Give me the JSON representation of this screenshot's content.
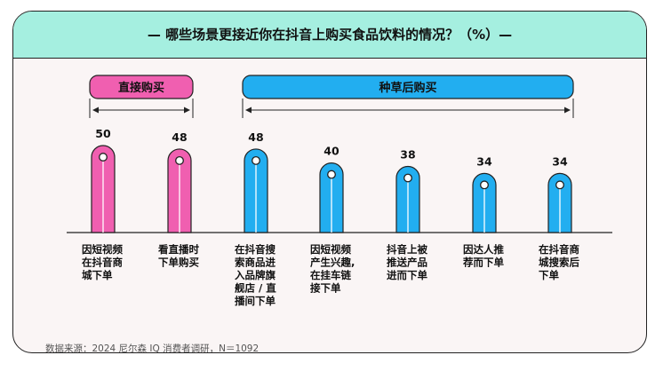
{
  "title": "— 哪些场景更接近你在抖音上购买食品饮料的情况？（%）—",
  "source": "数据来源：2024 尼尔森 IQ 消费者调研，N＝1092",
  "colors": {
    "pink": "#f05fb0",
    "blue": "#22aef0",
    "header_bg": "#a5efe0",
    "card_bg": "#faf5f5",
    "outline": "#222222"
  },
  "chart_data": {
    "type": "bar",
    "title": "哪些场景更接近你在抖音上购买食品饮料的情况？（%）",
    "categories": [
      [
        "因短视频",
        "在抖音商",
        "城下单"
      ],
      [
        "看直播时",
        "下单购买"
      ],
      [
        "在抖音搜",
        "索商品进",
        "入品牌旗",
        "舰店 / 直",
        "播间下单"
      ],
      [
        "因短视频",
        "产生兴趣,",
        "在挂车链",
        "接下单"
      ],
      [
        "抖音上被",
        "推送产品",
        "进而下单"
      ],
      [
        "因达人推",
        "荐而下单"
      ],
      [
        "在抖音商",
        "城搜索后",
        "下单"
      ]
    ],
    "values": [
      50,
      48,
      48,
      40,
      38,
      34,
      34
    ],
    "groups": [
      {
        "name": "直接购买",
        "from": 0,
        "to": 1,
        "color": "#f05fb0"
      },
      {
        "name": "种草后购买",
        "from": 2,
        "to": 6,
        "color": "#22aef0"
      }
    ],
    "ylim": [
      0,
      50
    ],
    "grid": false,
    "legend": "none"
  }
}
